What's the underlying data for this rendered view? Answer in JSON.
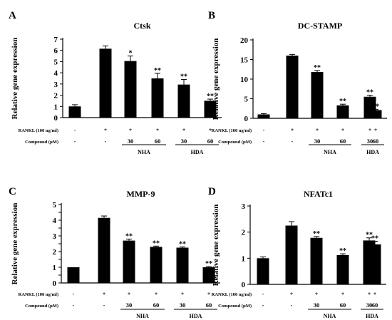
{
  "chart_data": [
    {
      "type": "bar",
      "panel": "A",
      "title": "Ctsk",
      "ylabel": "Relative gene expression",
      "ylim": [
        0,
        7
      ],
      "yticks": [
        0,
        1,
        2,
        3,
        4,
        5,
        6,
        7
      ],
      "values": [
        1.0,
        6.15,
        5.05,
        3.5,
        2.95,
        1.5
      ],
      "errors": [
        0.15,
        0.25,
        0.45,
        0.45,
        0.45,
        0.15
      ],
      "significance": [
        "",
        "",
        "*",
        "**",
        "**",
        "**"
      ]
    },
    {
      "type": "bar",
      "panel": "B",
      "title": "DC-STAMP",
      "ylabel": "Relative gene expression",
      "ylim": [
        0,
        20
      ],
      "yticks": [
        0,
        5,
        10,
        15,
        20
      ],
      "values": [
        1.0,
        16.0,
        11.8,
        3.3,
        5.5,
        2.1
      ],
      "errors": [
        0.2,
        0.3,
        0.4,
        0.3,
        0.4,
        0.2
      ],
      "significance": [
        "",
        "",
        "**",
        "**",
        "**",
        "**"
      ]
    },
    {
      "type": "bar",
      "panel": "C",
      "title": "MMP-9",
      "ylabel": "Relative gene expression",
      "ylim": [
        0,
        5
      ],
      "yticks": [
        0,
        0.5,
        1,
        1.5,
        2,
        2.5,
        3,
        3.5,
        4,
        4.5,
        5
      ],
      "ytick_labels": [
        "0",
        "",
        "1",
        "",
        "2",
        "",
        "3",
        "",
        "4",
        "",
        "5"
      ],
      "values": [
        1.0,
        4.15,
        2.7,
        2.3,
        2.25,
        1.0
      ],
      "errors": [
        0.0,
        0.12,
        0.1,
        0.05,
        0.05,
        0.05
      ],
      "significance": [
        "",
        "",
        "**",
        "**",
        "**",
        "**"
      ]
    },
    {
      "type": "bar",
      "panel": "D",
      "title": "NFATc1",
      "ylabel": "Relative gene expression",
      "ylim": [
        0,
        3
      ],
      "yticks": [
        0,
        1,
        2,
        3
      ],
      "values": [
        1.0,
        2.25,
        1.78,
        1.12,
        1.68,
        1.53
      ],
      "errors": [
        0.05,
        0.15,
        0.05,
        0.05,
        0.1,
        0.12
      ],
      "significance": [
        "",
        "",
        "**",
        "**",
        "**",
        "**"
      ]
    }
  ],
  "conditions": {
    "rankl_label": "RANKL (100 ng/ml)",
    "rankl": [
      "-",
      "+",
      "+",
      "+",
      "+",
      "+"
    ],
    "compound_label": "Compound (μM)",
    "compound": [
      "-",
      "-",
      "30",
      "60",
      "30",
      "60"
    ],
    "groups": [
      "NHA",
      "HDA"
    ]
  }
}
